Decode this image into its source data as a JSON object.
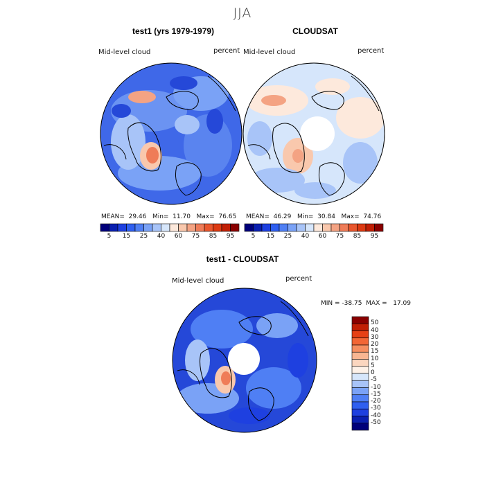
{
  "title": "JJA",
  "panel1": {
    "title": "test1 (yrs 1979-1979)",
    "left_label": "Mid-level cloud",
    "right_label": "percent",
    "stats": "MEAN=  29.46   Min=  11.70   Max=  76.65"
  },
  "panel2": {
    "title": "CLOUDSAT",
    "left_label": "Mid-level cloud",
    "right_label": "percent",
    "stats": "MEAN=  46.29   Min=  30.84   Max=  74.76"
  },
  "panel3": {
    "title": "test1 - CLOUDSAT",
    "left_label": "Mid-level cloud",
    "right_label": "percent",
    "stats": "MIN = -38.75  MAX =   17.09"
  },
  "colorbar_top": {
    "ticks": [
      "5",
      "15",
      "25",
      "40",
      "60",
      "75",
      "85",
      "95"
    ],
    "colors": [
      "#00007a",
      "#0a1fb0",
      "#1e40e0",
      "#2f5ff0",
      "#4f7ff4",
      "#7aa2f6",
      "#a8c4f8",
      "#d6e6fb",
      "#fde9dc",
      "#f9c8ad",
      "#f4a383",
      "#ef7c58",
      "#e9562d",
      "#dd3a12",
      "#c11f05",
      "#8a0000"
    ]
  },
  "colorbar_diff": {
    "ticks": [
      "50",
      "40",
      "30",
      "20",
      "15",
      "10",
      "5",
      "0",
      "-5",
      "-10",
      "-15",
      "-20",
      "-30",
      "-40",
      "-50"
    ],
    "colors": [
      "#8a0000",
      "#c11f05",
      "#e64015",
      "#f26635",
      "#f58e60",
      "#f8b692",
      "#fbd6bf",
      "#fdf1e8",
      "#d6e6fb",
      "#a8c4f8",
      "#7aa2f6",
      "#4f7ff4",
      "#2f5ff0",
      "#1e40e0",
      "#0a1fb0",
      "#00007a"
    ]
  }
}
